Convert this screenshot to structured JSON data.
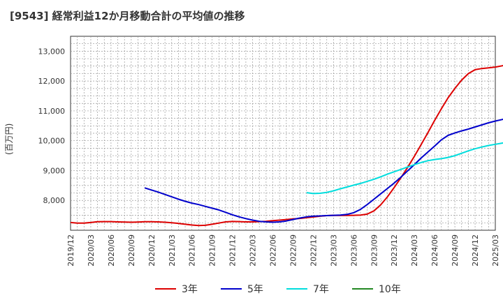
{
  "header": {
    "title": "[9543]  経常利益12か月移動合計の平均値の推移"
  },
  "chart_data": {
    "type": "line",
    "title": "[9543]  経常利益12か月移動合計の平均値の推移",
    "xlabel": "",
    "ylabel": "(百万円)",
    "x_ticks": [
      "2019/12",
      "2020/03",
      "2020/06",
      "2020/09",
      "2020/12",
      "2021/03",
      "2021/06",
      "2021/09",
      "2021/12",
      "2022/03",
      "2022/06",
      "2022/09",
      "2022/12",
      "2023/03",
      "2023/06",
      "2023/09",
      "2023/12",
      "2024/03",
      "2024/06",
      "2024/09",
      "2024/12",
      "2025/03"
    ],
    "y_ticks": [
      8000,
      9000,
      10000,
      11000,
      12000,
      13000
    ],
    "y_tick_labels": [
      "8,000",
      "9,000",
      "10,000",
      "11,000",
      "12,000",
      "13,000"
    ],
    "ylim": [
      7000,
      13500
    ],
    "grid": true,
    "legend_position": "bottom",
    "series": [
      {
        "name": "3年",
        "color": "#dd0000",
        "start": "2019/12",
        "values": [
          7260,
          7240,
          7240,
          7260,
          7285,
          7290,
          7290,
          7280,
          7275,
          7270,
          7275,
          7285,
          7285,
          7280,
          7270,
          7250,
          7230,
          7200,
          7175,
          7160,
          7165,
          7200,
          7240,
          7280,
          7295,
          7290,
          7280,
          7280,
          7290,
          7300,
          7320,
          7340,
          7360,
          7380,
          7395,
          7420,
          7445,
          7470,
          7490,
          7500,
          7495,
          7495,
          7500,
          7510,
          7540,
          7650,
          7850,
          8120,
          8430,
          8760,
          9110,
          9480,
          9870,
          10270,
          10680,
          11070,
          11440,
          11750,
          12030,
          12250,
          12380,
          12420,
          12440,
          12470,
          12510,
          12560,
          12620,
          12690,
          12770,
          12870,
          12990,
          13140,
          13310
        ]
      },
      {
        "name": "5年",
        "color": "#0000cc",
        "start": "2020/11",
        "values": [
          8420,
          8350,
          8280,
          8200,
          8120,
          8040,
          7970,
          7910,
          7860,
          7800,
          7740,
          7680,
          7600,
          7520,
          7450,
          7390,
          7340,
          7300,
          7280,
          7270,
          7280,
          7310,
          7360,
          7410,
          7450,
          7470,
          7480,
          7490,
          7500,
          7510,
          7530,
          7590,
          7700,
          7860,
          8040,
          8220,
          8400,
          8580,
          8780,
          8990,
          9200,
          9420,
          9620,
          9820,
          10030,
          10180,
          10260,
          10330,
          10390,
          10460,
          10530,
          10600,
          10660,
          10710,
          10760,
          10810,
          10860,
          10920,
          10990
        ]
      },
      {
        "name": "7年",
        "color": "#00dddd",
        "start": "2022/11",
        "values": [
          8260,
          8230,
          8240,
          8270,
          8320,
          8390,
          8450,
          8510,
          8570,
          8640,
          8710,
          8790,
          8880,
          8960,
          9040,
          9120,
          9200,
          9270,
          9330,
          9370,
          9400,
          9440,
          9500,
          9580,
          9660,
          9730,
          9790,
          9840,
          9880,
          9920,
          9960,
          10010
        ]
      },
      {
        "name": "10年",
        "color": "#228822",
        "start": "2024/12",
        "values": []
      }
    ]
  }
}
